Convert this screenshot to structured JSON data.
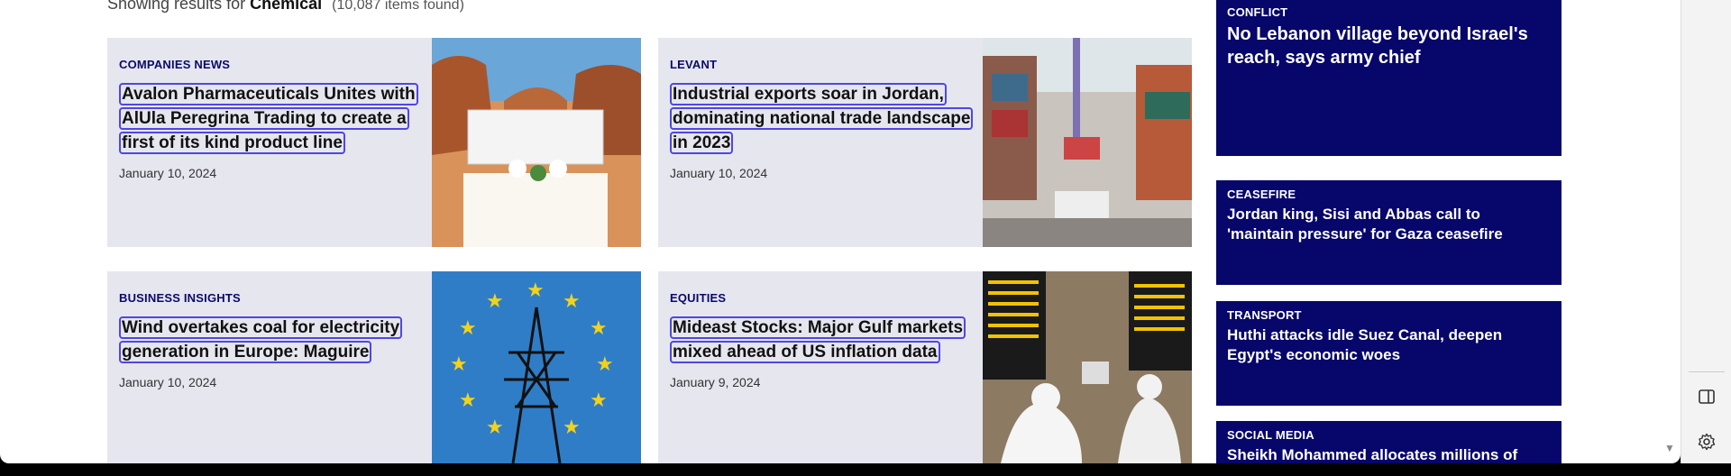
{
  "search": {
    "prefix": "Showing results for",
    "query": "Chemical",
    "count": "(10,087 items found)"
  },
  "articles": [
    {
      "category": "COMPANIES NEWS",
      "title": "Avalon Pharmaceuticals Unites with AlUla Peregrina Trading to create a first of its kind product line",
      "date": "January 10, 2024"
    },
    {
      "category": "LEVANT",
      "title": "Industrial exports soar in Jordan, dominating national trade landscape in 2023",
      "date": "January 10, 2024"
    },
    {
      "category": "BUSINESS INSIGHTS",
      "title": "Wind overtakes coal for electricity generation in Europe: Maguire",
      "date": "January 10, 2024"
    },
    {
      "category": "EQUITIES",
      "title": "Mideast Stocks: Major Gulf markets mixed ahead of US inflation data",
      "date": "January 9, 2024"
    }
  ],
  "sidebar": [
    {
      "category": "CONFLICT",
      "title": "No Lebanon village beyond Israel's reach, says army chief"
    },
    {
      "category": "CEASEFIRE",
      "title": "Jordan king, Sisi and Abbas call to 'maintain pressure' for Gaza ceasefire"
    },
    {
      "category": "TRANSPORT",
      "title": "Huthi attacks idle Suez Canal, deepen Egypt's economic woes"
    },
    {
      "category": "SOCIAL MEDIA",
      "title": "Sheikh Mohammed allocates millions of"
    }
  ],
  "rail": {
    "icons": [
      "sidebar-toggle-icon",
      "gear-icon"
    ]
  }
}
